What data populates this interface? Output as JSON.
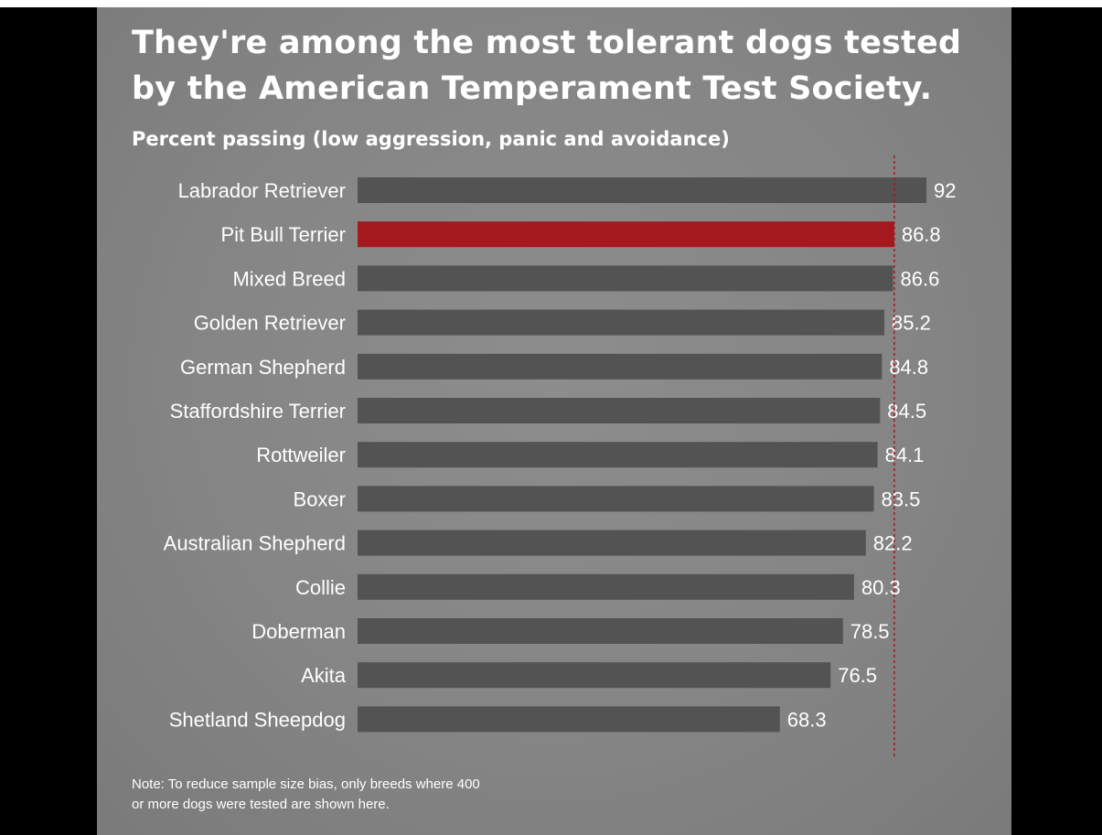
{
  "chart_data": {
    "type": "bar",
    "orientation": "horizontal",
    "title": "They're among the most tolerant dogs tested by the American Temperament Test Society.",
    "subtitle": "Percent passing (low aggression, panic and avoidance)",
    "categories": [
      "Labrador Retriever",
      "Pit Bull Terrier",
      "Mixed Breed",
      "Golden Retriever",
      "German Shepherd",
      "Staffordshire Terrier",
      "Rottweiler",
      "Boxer",
      "Australian Shepherd",
      "Collie",
      "Doberman",
      "Akita",
      "Shetland Sheepdog"
    ],
    "values": [
      92,
      86.8,
      86.6,
      85.2,
      84.8,
      84.5,
      84.1,
      83.5,
      82.2,
      80.3,
      78.5,
      76.5,
      68.3
    ],
    "value_labels": [
      "92",
      "86.8",
      "86.6",
      "85.2",
      "84.8",
      "84.5",
      "84.1",
      "83.5",
      "82.2",
      "80.3",
      "78.5",
      "76.5",
      "68.3"
    ],
    "highlight": "Pit Bull Terrier",
    "reference_line": 86.8,
    "xlim": [
      0,
      92
    ],
    "grid": false,
    "colors": {
      "bar": "#535353",
      "highlight_bar": "#a3191d",
      "reference_line": "#a3191d",
      "text": "#ffffff",
      "background": "#858585"
    }
  },
  "note": {
    "line1": "Note: To reduce sample size bias, only breeds where 400",
    "line2": "or more dogs were tested are shown here."
  }
}
